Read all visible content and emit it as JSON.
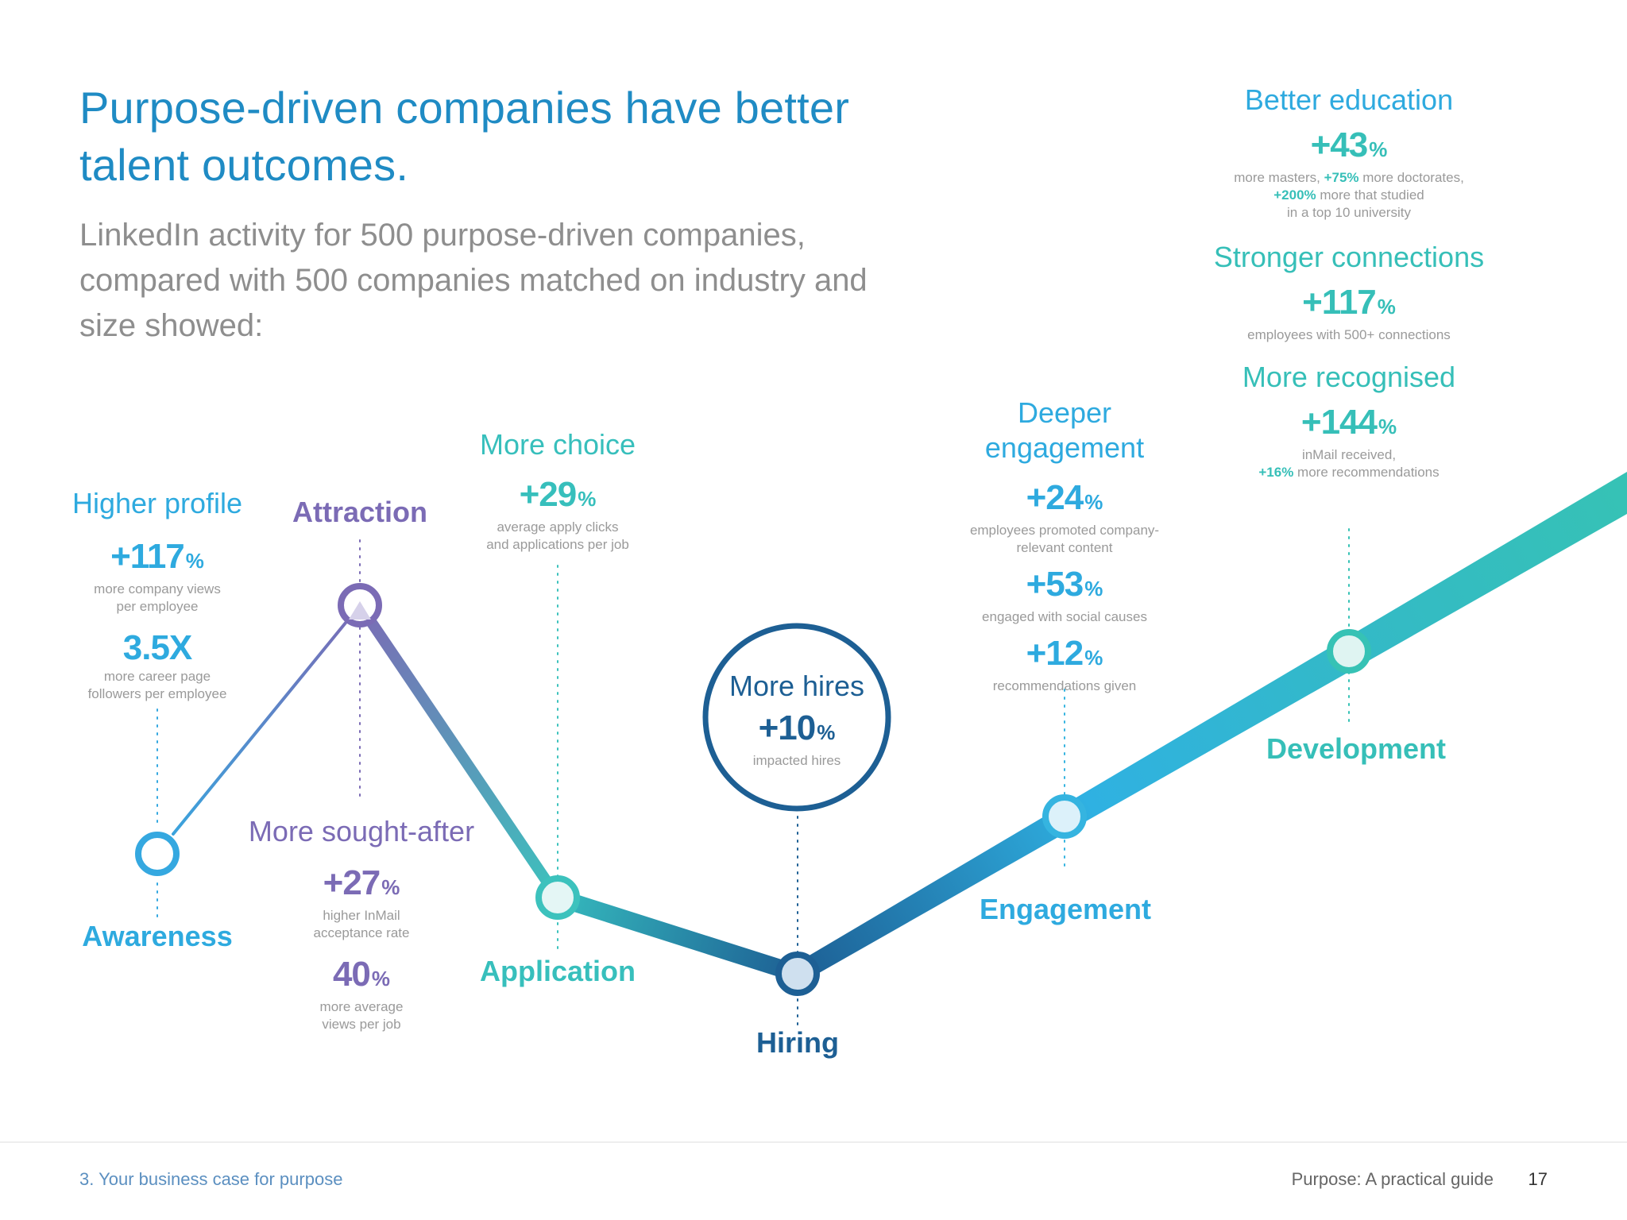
{
  "title": "Purpose-driven companies have better talent outcomes.",
  "subtitle": "LinkedIn activity for 500 purpose-driven companies, compared with 500 companies matched on industry and size showed:",
  "colors": {
    "awareness": "#2eaadf",
    "attraction": "#7b6bb5",
    "application": "#37bfbc",
    "hiring": "#1d5f94",
    "teal": "#36bfb8"
  },
  "stages": {
    "awareness": "Awareness",
    "attraction": "Attraction",
    "application": "Application",
    "hiring": "Hiring",
    "engagement": "Engagement",
    "development": "Development"
  },
  "higher_profile": {
    "heading": "Higher profile",
    "stat1": "+117",
    "pct1": "%",
    "desc1a": "more company views",
    "desc1b": "per employee",
    "stat2": "3.5X",
    "desc2a": "more career page",
    "desc2b": "followers per employee"
  },
  "sought_after": {
    "heading": "More sought-after",
    "stat1": "+27",
    "pct1": "%",
    "desc1a": "higher InMail",
    "desc1b": "acceptance rate",
    "stat2": "40",
    "pct2": "%",
    "desc2a": "more average",
    "desc2b": "views per job"
  },
  "more_choice": {
    "heading": "More choice",
    "stat1": "+29",
    "pct1": "%",
    "desc1a": "average apply clicks",
    "desc1b": "and applications per job"
  },
  "more_hires": {
    "heading": "More hires",
    "stat1": "+10",
    "pct1": "%",
    "desc1": "impacted hires"
  },
  "deeper_engagement": {
    "heading1": "Deeper",
    "heading2": "engagement",
    "stat1": "+24",
    "pct1": "%",
    "desc1a": "employees promoted company-",
    "desc1b": "relevant content",
    "stat2": "+53",
    "pct2": "%",
    "desc2": "engaged with social causes",
    "stat3": "+12",
    "pct3": "%",
    "desc3": "recommendations given"
  },
  "better_education": {
    "heading": "Better education",
    "stat1": "+43",
    "pct1": "%",
    "d1": "more masters, ",
    "d1_em": "+75%",
    "d1_end": " more doctorates,",
    "d2_em": "+200%",
    "d2_end": " more that studied",
    "d3": "in a top 10 university"
  },
  "stronger_connections": {
    "heading": "Stronger connections",
    "stat1": "+117",
    "pct1": "%",
    "desc1": "employees with 500+ connections"
  },
  "more_recognised": {
    "heading": "More recognised",
    "stat1": "+144",
    "pct1": "%",
    "desc1": "inMail received,",
    "d2_em": "+16%",
    "d2_end": " more recommendations"
  },
  "footer": {
    "section": "3. Your business case for purpose",
    "guide": "Purpose: A practical guide",
    "page": "17"
  }
}
